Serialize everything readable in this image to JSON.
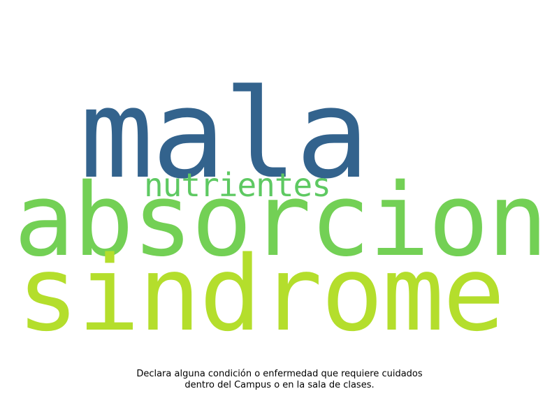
{
  "wordcloud": {
    "words": [
      {
        "text": "mala",
        "color": "#33638d"
      },
      {
        "text": "absorcion",
        "color": "#73d055"
      },
      {
        "text": "nutrientes",
        "color": "#5ec962"
      },
      {
        "text": "sindrome",
        "color": "#b4de2c"
      }
    ]
  },
  "caption": {
    "line1": "Declara alguna condición o enfermedad que requiere cuidados",
    "line2": "dentro del Campus o en la sala de clases."
  }
}
